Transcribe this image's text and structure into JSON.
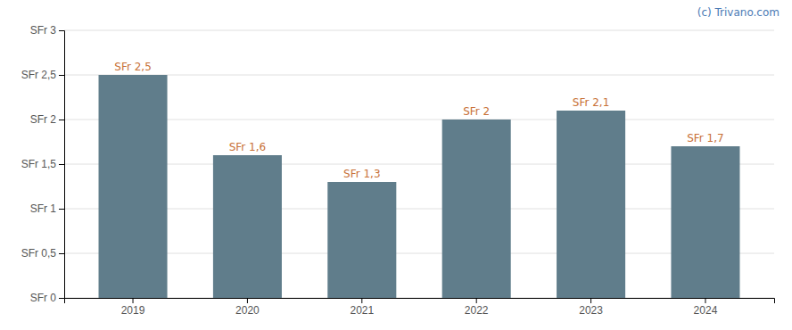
{
  "chart_data": {
    "type": "bar",
    "categories": [
      "2019",
      "2020",
      "2021",
      "2022",
      "2023",
      "2024"
    ],
    "values": [
      2.5,
      1.6,
      1.3,
      2.0,
      2.1,
      1.7
    ],
    "value_labels": [
      "SFr 2,5",
      "SFr 1,6",
      "SFr 1,3",
      "SFr 2",
      "SFr 2,1",
      "SFr 1,7"
    ],
    "data_labels": true,
    "color": "#607d8b",
    "ylim": [
      0,
      3.0
    ],
    "yticks": [
      {
        "value": 0,
        "label": "SFr 0"
      },
      {
        "value": 0.5,
        "label": "SFr 0,5"
      },
      {
        "value": 1.0,
        "label": "SFr 1"
      },
      {
        "value": 1.5,
        "label": "SFr 1,5"
      },
      {
        "value": 2.0,
        "label": "SFr 2"
      },
      {
        "value": 2.5,
        "label": "SFr 2,5"
      },
      {
        "value": 3.0,
        "label": "SFr 3"
      }
    ],
    "grid": true,
    "annotations": [
      "(c) Trivano.com"
    ]
  }
}
